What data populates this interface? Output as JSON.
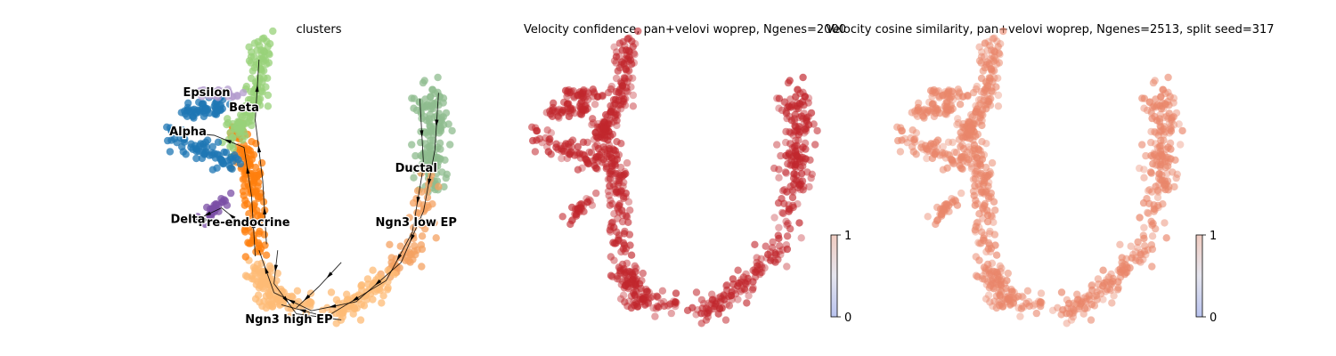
{
  "panels": [
    {
      "title": "clusters",
      "type": "scatter",
      "mode": "categorical",
      "colorbar": null
    },
    {
      "title": "Velocity confidence, pan+velovi woprep, Ngenes=2000",
      "type": "scatter",
      "mode": "continuous",
      "color": "#c1272d",
      "colorbar": {
        "min": "0",
        "max": "1",
        "colors": [
          "#b9c3ef",
          "#e5e5ee",
          "#f1ccc1"
        ]
      }
    },
    {
      "title": "Velocity cosine similarity, pan+velovi woprep, Ngenes=2513, split seed=317",
      "type": "scatter",
      "mode": "continuous",
      "color": "#e9866a",
      "colorbar": {
        "min": "0",
        "max": "1",
        "colors": [
          "#b9c3ef",
          "#e5e5ee",
          "#f1ccc1"
        ]
      }
    }
  ],
  "chart_data": {
    "type": "scatter",
    "embedding": "umap",
    "axes_visible": false,
    "clusters": [
      {
        "name": "Ductal",
        "color": "#8fbc8f",
        "label_pos": [
          6.6,
          4.8
        ]
      },
      {
        "name": "Ngn3 low EP",
        "color": "#f4a261",
        "label_pos": [
          6.6,
          3.0
        ]
      },
      {
        "name": "Ngn3 high EP",
        "color": "#fdbb75",
        "label_pos": [
          3.2,
          -0.2
        ]
      },
      {
        "name": "Pre-endocrine",
        "color": "#ff7f0e",
        "label_pos": [
          2.0,
          3.0
        ]
      },
      {
        "name": "Beta",
        "color": "#98d27a",
        "label_pos": [
          2.0,
          6.8
        ]
      },
      {
        "name": "Alpha",
        "color": "#1f77b4",
        "label_pos": [
          0.5,
          6.0
        ]
      },
      {
        "name": "Delta",
        "color": "#7b4fa6",
        "label_pos": [
          0.5,
          3.1
        ]
      },
      {
        "name": "Epsilon",
        "color": "#b39ccd",
        "label_pos": [
          1.0,
          7.3
        ]
      }
    ]
  }
}
